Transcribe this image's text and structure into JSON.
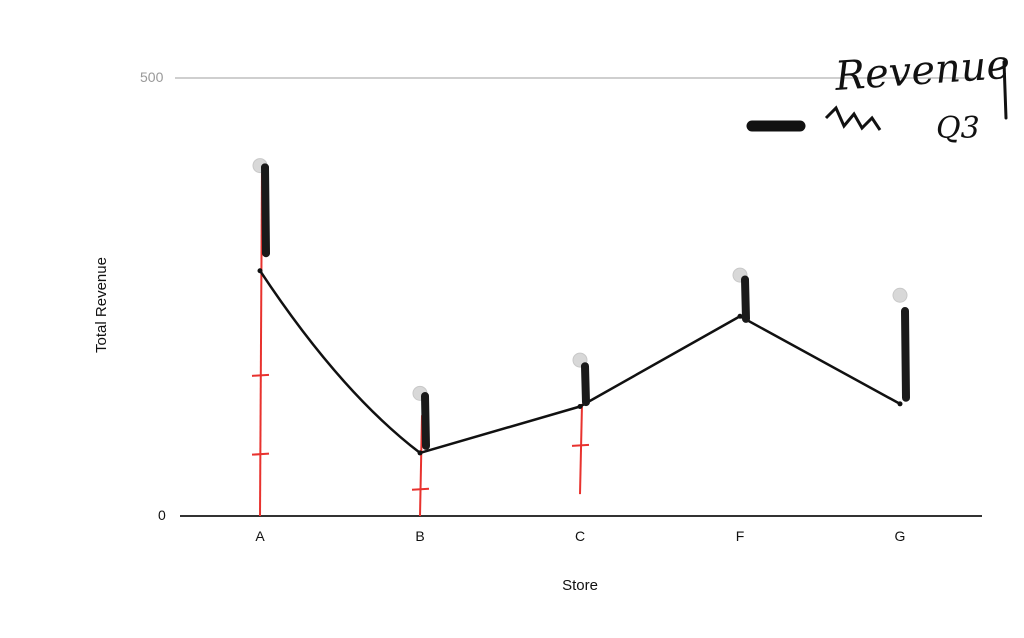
{
  "chart_data": {
    "type": "line",
    "title": "",
    "xlabel": "Store",
    "ylabel": "Total Revenue",
    "categories": [
      "A",
      "B",
      "C",
      "F",
      "G"
    ],
    "ylim": [
      0,
      500
    ],
    "y_ticks": [
      "0",
      "500"
    ],
    "grid": false,
    "series": [
      {
        "name": "Q3",
        "values": [
          280,
          72,
          125,
          228,
          128
        ],
        "color": "#111111"
      }
    ],
    "point_markers": [
      400,
      140,
      178,
      275,
      252
    ],
    "black_bars": [
      {
        "category": "A",
        "from": 300,
        "to": 398
      },
      {
        "category": "B",
        "from": 80,
        "to": 137
      },
      {
        "category": "C",
        "from": 130,
        "to": 171
      },
      {
        "category": "F",
        "from": 225,
        "to": 270
      },
      {
        "category": "G",
        "from": 135,
        "to": 234
      }
    ],
    "red_marks": [
      {
        "category": "A",
        "from": 0,
        "to": 398,
        "ticks": [
          160,
          70
        ]
      },
      {
        "category": "B",
        "from": 0,
        "to": 115,
        "ticks": [
          30
        ]
      },
      {
        "category": "C",
        "from": 25,
        "to": 128,
        "ticks": [
          80
        ]
      }
    ],
    "annotation_text": [
      "Revenue",
      "Q3"
    ],
    "legend": "top-right"
  }
}
